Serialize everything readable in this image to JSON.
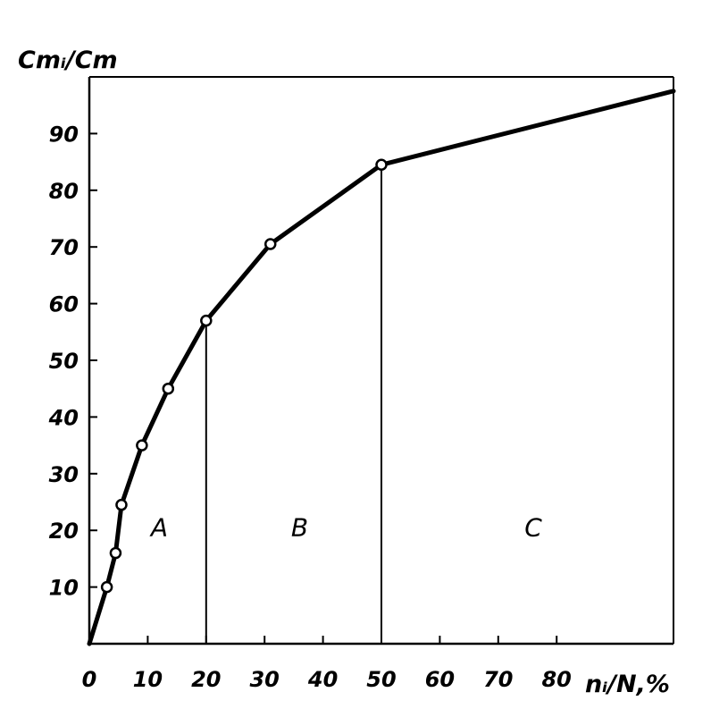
{
  "chart_data": {
    "type": "line",
    "xlabel": "nᵢ/N,%",
    "ylabel": "Cmᵢ/Cm",
    "xlim": [
      0,
      100
    ],
    "ylim": [
      0,
      100
    ],
    "x_ticks": [
      0,
      10,
      20,
      30,
      40,
      50,
      60,
      70,
      80
    ],
    "y_ticks": [
      10,
      20,
      30,
      40,
      50,
      60,
      70,
      80,
      90
    ],
    "grid": false,
    "series": [
      {
        "points": [
          {
            "x": 0,
            "y": 0,
            "marker": false
          },
          {
            "x": 3,
            "y": 10,
            "marker": true
          },
          {
            "x": 4.5,
            "y": 16,
            "marker": true
          },
          {
            "x": 5.5,
            "y": 24.5,
            "marker": true
          },
          {
            "x": 9,
            "y": 35,
            "marker": true
          },
          {
            "x": 13.5,
            "y": 45,
            "marker": true
          },
          {
            "x": 20,
            "y": 57,
            "marker": true
          },
          {
            "x": 31,
            "y": 70.5,
            "marker": true
          },
          {
            "x": 50,
            "y": 84.5,
            "marker": true
          },
          {
            "x": 100,
            "y": 97.5,
            "marker": false
          }
        ]
      }
    ],
    "dividers": [
      {
        "x": 20,
        "y_top": 57
      },
      {
        "x": 50,
        "y_top": 84.5
      }
    ],
    "regions": [
      {
        "label": "A",
        "x": 12,
        "y": 19
      },
      {
        "label": "B",
        "x": 36,
        "y": 19
      },
      {
        "label": "C",
        "x": 76,
        "y": 19
      }
    ],
    "colors": {
      "line": "#000000",
      "marker_fill": "#ffffff",
      "axis": "#000000"
    }
  }
}
